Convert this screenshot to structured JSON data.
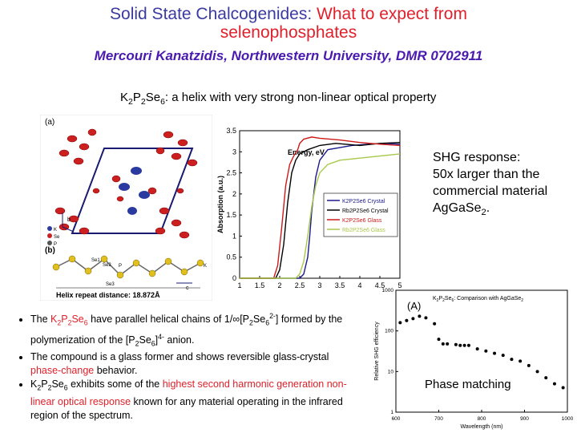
{
  "title": {
    "part1": "Solid State Chalcogenides:",
    "part2": "What to expect from",
    "part3": "selenophosphates",
    "author": "Mercouri Kanatzidis, Northwestern University, DMR 0702911"
  },
  "heading": {
    "formula_k": "K",
    "formula_2a": "2",
    "formula_p": "P",
    "formula_2b": "2",
    "formula_se": "Se",
    "formula_6": "6",
    "text": ": a helix with very strong non-linear optical property"
  },
  "structure_figure": {
    "label_a": "(a)",
    "label_b": "(b)",
    "axis_b": "b",
    "axis_c": "c",
    "axis_a": "a",
    "legend_k": "K",
    "legend_se": "Se",
    "legend_p": "P",
    "atom_se1": "Se1",
    "atom_se2": "Se2",
    "atom_p": "P",
    "atom_se3": "Se3",
    "atom_k": "K",
    "repeat_distance": "Helix repeat distance: 18.872Å"
  },
  "shg_note": {
    "line1": "SHG response:",
    "line2": "50x larger than the",
    "line3": "commercial material",
    "line4": "AgGaSe",
    "line4_sub": "2",
    "line4_end": "."
  },
  "bullets": {
    "b1_a": "The ",
    "b1_formula": "K2P2Se6",
    "b1_b": " have parallel helical chains of  1/∞[P",
    "b1_c": "2",
    "b1_d": "Se",
    "b1_e": "6",
    "b1_f": "2-",
    "b1_g": "]",
    "b1_h": "formed by the polymerization of the [P",
    "b1_i": "2",
    "b1_j": "Se",
    "b1_k": "6",
    "b1_l": "]",
    "b1_m": "4-",
    "b1_n": " anion.",
    "b2_a": "The compound is a glass former and shows reversible glass-crystal ",
    "b2_b": "phase-change",
    "b2_c": " behavior.",
    "b3_a": "K",
    "b3_a2": "2",
    "b3_a3": "P",
    "b3_a4": "2",
    "b3_a5": "Se",
    "b3_a6": "6",
    "b3_b": " exhibits some of the ",
    "b3_c": "highest second harmonic generation non-linear optical response",
    "b3_d": " known for any material operating in the infrared region of the spectrum."
  },
  "chart_data": [
    {
      "type": "line",
      "title": "",
      "xlabel": "Energy, eV",
      "ylabel": "Absorption (a.u.)",
      "xlim": [
        1,
        5
      ],
      "ylim": [
        0,
        3.5
      ],
      "xticks": [
        "1",
        "1.5",
        "2",
        "2.5",
        "3",
        "3.5",
        "4",
        "4.5",
        "5"
      ],
      "yticks": [
        "0",
        "0.5",
        "1",
        "1.5",
        "2",
        "2.5",
        "3",
        "3.5"
      ],
      "legend_position": "center-right",
      "series": [
        {
          "name": "K2P2Se6 Crystal",
          "color": "#1a1a8c",
          "x": [
            1,
            2.5,
            2.6,
            2.7,
            2.75,
            2.8,
            2.9,
            3.0,
            3.2,
            3.5,
            3.8,
            4.2,
            4.6,
            5.0
          ],
          "y": [
            0,
            0.0,
            0.1,
            0.5,
            1.0,
            1.6,
            2.4,
            2.8,
            3.05,
            3.1,
            3.15,
            3.18,
            3.2,
            3.18
          ]
        },
        {
          "name": "Rb2P2Se6 Crystal",
          "color": "#000000",
          "x": [
            1,
            1.9,
            2.0,
            2.1,
            2.2,
            2.3,
            2.4,
            2.5,
            2.7,
            3.0,
            3.4,
            4.0,
            4.5,
            5.0
          ],
          "y": [
            0,
            0.0,
            0.2,
            0.8,
            1.8,
            2.5,
            2.8,
            2.95,
            3.05,
            3.15,
            3.2,
            3.15,
            3.2,
            3.22
          ]
        },
        {
          "name": "K2P2Se6 Glass",
          "color": "#cc1a1a",
          "x": [
            1,
            1.85,
            1.95,
            2.05,
            2.15,
            2.25,
            2.35,
            2.45,
            2.5,
            2.6,
            2.8,
            3.0,
            3.5,
            4.0,
            4.5,
            5.0
          ],
          "y": [
            0,
            0.0,
            0.3,
            1.2,
            2.2,
            2.7,
            2.9,
            3.05,
            3.2,
            3.3,
            3.35,
            3.32,
            3.28,
            3.22,
            3.18,
            3.15
          ]
        },
        {
          "name": "Rb2P2Se6 Glass",
          "color": "#a8c84a",
          "x": [
            1,
            2.4,
            2.5,
            2.6,
            2.7,
            2.8,
            2.9,
            3.0,
            3.2,
            3.5,
            4.0,
            4.5,
            5.0
          ],
          "y": [
            0,
            0.0,
            0.1,
            0.4,
            1.0,
            1.7,
            2.2,
            2.5,
            2.7,
            2.8,
            2.85,
            2.9,
            2.95
          ]
        }
      ]
    },
    {
      "type": "scatter",
      "title": "K2P2Se6: Comparison with AgGaSe2",
      "title_parts": {
        "k": "K",
        "n2a": "2",
        "p": "P",
        "n2b": "2",
        "se": "Se",
        "n6": "6",
        "rest": ": Comparison with AgGaSe",
        "n2c": "2"
      },
      "panel_label": "(A)",
      "annotation": "Phase matching",
      "xlabel": "Wavelength (nm)",
      "ylabel": "Relative SHG efficiency",
      "xlim": [
        600,
        1000
      ],
      "ylim_log": [
        1,
        1000
      ],
      "xticks": [
        "600",
        "700",
        "800",
        "900",
        "1000"
      ],
      "yticks": [
        "1",
        "10",
        "100",
        "1000"
      ],
      "x": [
        610,
        625,
        640,
        655,
        670,
        690,
        700,
        710,
        720,
        740,
        750,
        760,
        770,
        790,
        810,
        830,
        850,
        870,
        890,
        910,
        930,
        950,
        970,
        990
      ],
      "y": [
        160,
        180,
        200,
        230,
        210,
        150,
        62,
        48,
        48,
        46,
        44,
        44,
        44,
        36,
        32,
        28,
        25,
        20,
        18,
        14,
        10,
        7,
        5,
        4
      ]
    }
  ]
}
